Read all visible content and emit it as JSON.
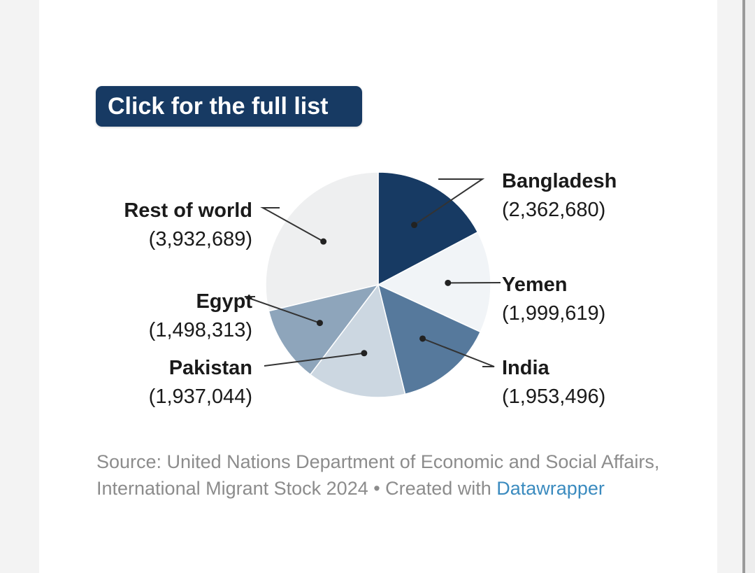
{
  "button": {
    "label": "Click for the full list"
  },
  "chart_data": {
    "type": "pie",
    "title": "",
    "start_angle_deg": 0,
    "direction": "clockwise",
    "slices": [
      {
        "label": "Bangladesh",
        "value": 2362680,
        "value_label": "(2,362,680)",
        "color": "#173a63"
      },
      {
        "label": "Yemen",
        "value": 1999619,
        "value_label": "(1,999,619)",
        "color": "#f1f4f7"
      },
      {
        "label": "India",
        "value": 1953496,
        "value_label": "(1,953,496)",
        "color": "#56799c"
      },
      {
        "label": "Pakistan",
        "value": 1937044,
        "value_label": "(1,937,044)",
        "color": "#ccd7e1"
      },
      {
        "label": "Egypt",
        "value": 1498313,
        "value_label": "(1,498,313)",
        "color": "#8ea5bb"
      },
      {
        "label": "Rest of world",
        "value": 3932689,
        "value_label": "(3,932,689)",
        "color": "#eeeff0"
      }
    ]
  },
  "source": {
    "text": "Source: United Nations Department of Economic and Social Affairs, International Migrant Stock 2024 • Created with ",
    "link_text": "Datawrapper"
  }
}
